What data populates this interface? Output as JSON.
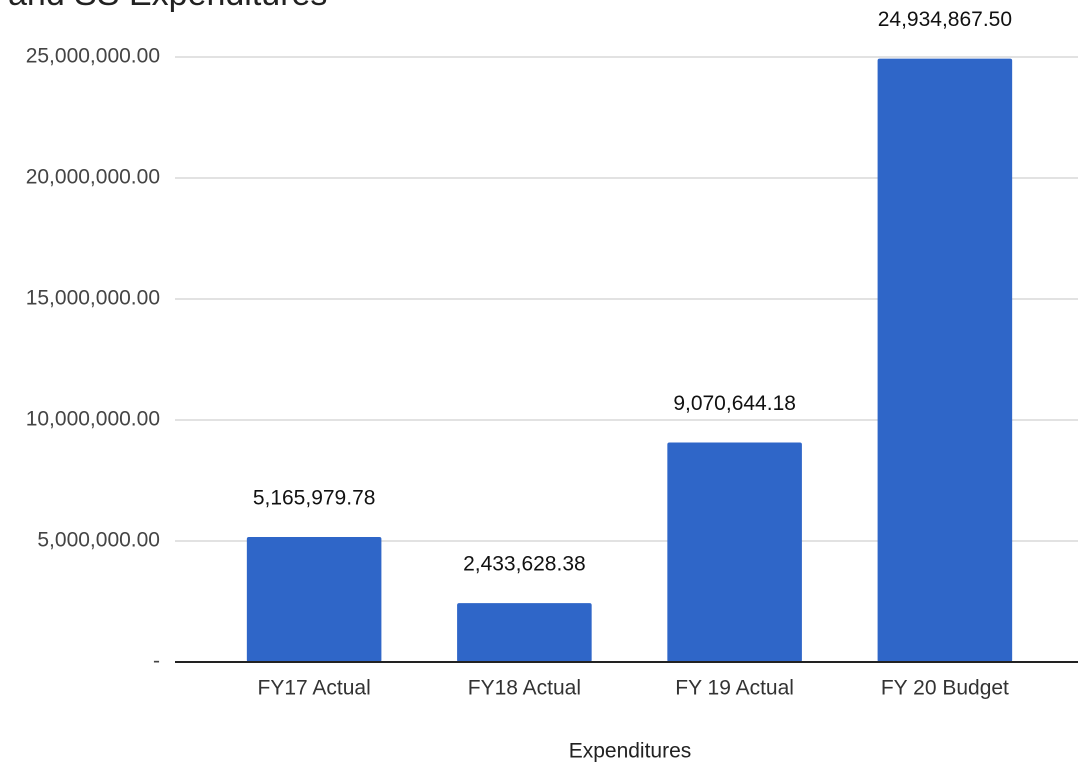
{
  "chart_data": {
    "type": "bar",
    "title": "and SS Expenditures",
    "x_label": "Expenditures",
    "categories": [
      "FY17 Actual",
      "FY18 Actual",
      "FY 19 Actual",
      "FY 20 Budget"
    ],
    "values": [
      5165979.78,
      2433628.38,
      9070644.18,
      24934867.5
    ],
    "value_labels": [
      "5,165,979.78",
      "2,433,628.38",
      "9,070,644.18",
      "24,934,867.50"
    ],
    "color": "#2f66c8",
    "ylim": [
      0,
      25000000
    ],
    "yticks": [
      {
        "value": 0,
        "label": "-"
      },
      {
        "value": 5000000,
        "label": "5,000,000.00"
      },
      {
        "value": 10000000,
        "label": "10,000,000.00"
      },
      {
        "value": 15000000,
        "label": "15,000,000.00"
      },
      {
        "value": 20000000,
        "label": "20,000,000.00"
      },
      {
        "value": 25000000,
        "label": "25,000,000.00"
      }
    ],
    "grid": true
  }
}
